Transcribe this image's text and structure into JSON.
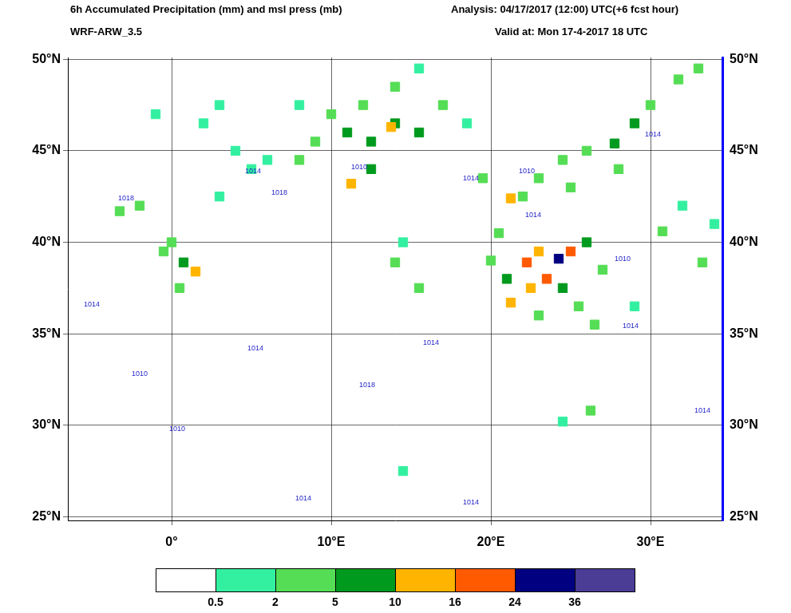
{
  "chart_data": {
    "type": "scatter",
    "title": "6h Accumulated Precipitation (mm) and msl press (mb)",
    "subtitle": "WRF-ARW_3.5",
    "annotations": [
      "Analysis: 04/17/2017 (12:00) UTC(+6 fcst hour)",
      "Valid at: Mon 17-4-2017  18 UTC"
    ],
    "xlim": [
      -6.5,
      34.5
    ],
    "ylim": [
      24.8,
      50.1
    ],
    "xticks": [
      {
        "value": 0,
        "label": "0°"
      },
      {
        "value": 10,
        "label": "10°E"
      },
      {
        "value": 20,
        "label": "20°E"
      },
      {
        "value": 30,
        "label": "30°E"
      }
    ],
    "yticks": [
      {
        "value": 25,
        "label": "25°N"
      },
      {
        "value": 30,
        "label": "30°N"
      },
      {
        "value": 35,
        "label": "35°N"
      },
      {
        "value": 40,
        "label": "40°N"
      },
      {
        "value": 45,
        "label": "45°N"
      },
      {
        "value": 50,
        "label": "50°N"
      }
    ],
    "grid": true,
    "colorbar": {
      "ticks": [
        0.5,
        2,
        5,
        10,
        16,
        24,
        36
      ],
      "colors": [
        "#ffffff",
        "#33f0a0",
        "#55dd55",
        "#009a1e",
        "#ffb400",
        "#ff5a00",
        "#000080",
        "#4b3c96"
      ]
    },
    "precipitation": [
      {
        "lon": 2,
        "lat": 46.5,
        "mm": 1
      },
      {
        "lon": 4,
        "lat": 45,
        "mm": 1.5
      },
      {
        "lon": 6,
        "lat": 44.5,
        "mm": 1
      },
      {
        "lon": 8,
        "lat": 47.5,
        "mm": 1.5
      },
      {
        "lon": 10,
        "lat": 47,
        "mm": 3
      },
      {
        "lon": 12,
        "lat": 47.5,
        "mm": 3
      },
      {
        "lon": 14,
        "lat": 48.5,
        "mm": 2
      },
      {
        "lon": 15.5,
        "lat": 49.5,
        "mm": 1.5
      },
      {
        "lon": 17,
        "lat": 47.5,
        "mm": 3
      },
      {
        "lon": 9,
        "lat": 45.5,
        "mm": 3
      },
      {
        "lon": 11,
        "lat": 46,
        "mm": 7
      },
      {
        "lon": 12.5,
        "lat": 45.5,
        "mm": 8
      },
      {
        "lon": 14,
        "lat": 46.5,
        "mm": 7
      },
      {
        "lon": 15.5,
        "lat": 46,
        "mm": 6
      },
      {
        "lon": 13.75,
        "lat": 46.3,
        "mm": 12
      },
      {
        "lon": 11.25,
        "lat": 43.2,
        "mm": 12
      },
      {
        "lon": 12.5,
        "lat": 44,
        "mm": 6
      },
      {
        "lon": 8,
        "lat": 44.5,
        "mm": 4
      },
      {
        "lon": 5,
        "lat": 44,
        "mm": 1.5
      },
      {
        "lon": 3,
        "lat": 47.5,
        "mm": 1
      },
      {
        "lon": 18.5,
        "lat": 46.5,
        "mm": 1.5
      },
      {
        "lon": -1,
        "lat": 47,
        "mm": 1
      },
      {
        "lon": 19.5,
        "lat": 43.5,
        "mm": 2
      },
      {
        "lon": 21.25,
        "lat": 42.4,
        "mm": 10
      },
      {
        "lon": 22,
        "lat": 42.5,
        "mm": 4
      },
      {
        "lon": 23,
        "lat": 43.5,
        "mm": 2
      },
      {
        "lon": 24.5,
        "lat": 44.5,
        "mm": 3
      },
      {
        "lon": 26,
        "lat": 45,
        "mm": 4
      },
      {
        "lon": 27.75,
        "lat": 45.4,
        "mm": 8
      },
      {
        "lon": 29,
        "lat": 46.5,
        "mm": 5
      },
      {
        "lon": 30,
        "lat": 47.5,
        "mm": 3
      },
      {
        "lon": 31.75,
        "lat": 48.9,
        "mm": 3
      },
      {
        "lon": 33,
        "lat": 49.5,
        "mm": 2
      },
      {
        "lon": 25,
        "lat": 43,
        "mm": 2
      },
      {
        "lon": 28,
        "lat": 44,
        "mm": 2
      },
      {
        "lon": 20,
        "lat": 39,
        "mm": 3
      },
      {
        "lon": 21,
        "lat": 38,
        "mm": 6
      },
      {
        "lon": 20.5,
        "lat": 40.5,
        "mm": 4
      },
      {
        "lon": 27,
        "lat": 38.5,
        "mm": 3
      },
      {
        "lon": 26.5,
        "lat": 35.5,
        "mm": 2
      },
      {
        "lon": 23,
        "lat": 36,
        "mm": 3
      },
      {
        "lon": 25.5,
        "lat": 36.5,
        "mm": 4
      },
      {
        "lon": 24.5,
        "lat": 37.5,
        "mm": 6
      },
      {
        "lon": 26,
        "lat": 40,
        "mm": 8
      },
      {
        "lon": 22.5,
        "lat": 37.5,
        "mm": 10
      },
      {
        "lon": 21.25,
        "lat": 36.7,
        "mm": 14
      },
      {
        "lon": 23,
        "lat": 39.5,
        "mm": 14
      },
      {
        "lon": 23.5,
        "lat": 38,
        "mm": 16
      },
      {
        "lon": 25,
        "lat": 39.5,
        "mm": 18
      },
      {
        "lon": 22.25,
        "lat": 38.9,
        "mm": 20
      },
      {
        "lon": 24.25,
        "lat": 39.1,
        "mm": 30
      },
      {
        "lon": 30.75,
        "lat": 40.6,
        "mm": 3
      },
      {
        "lon": 33.25,
        "lat": 38.9,
        "mm": 2
      },
      {
        "lon": 32,
        "lat": 42,
        "mm": 1.5
      },
      {
        "lon": 34,
        "lat": 41,
        "mm": 1.5
      },
      {
        "lon": 29,
        "lat": 36.5,
        "mm": 1
      },
      {
        "lon": -3.25,
        "lat": 41.7,
        "mm": 3
      },
      {
        "lon": -2,
        "lat": 42,
        "mm": 2
      },
      {
        "lon": 0,
        "lat": 40,
        "mm": 3
      },
      {
        "lon": 0.5,
        "lat": 37.5,
        "mm": 3
      },
      {
        "lon": -0.5,
        "lat": 39.5,
        "mm": 2
      },
      {
        "lon": 3,
        "lat": 42.5,
        "mm": 1.5
      },
      {
        "lon": 0.75,
        "lat": 38.9,
        "mm": 6
      },
      {
        "lon": 1.5,
        "lat": 38.4,
        "mm": 14
      },
      {
        "lon": 14,
        "lat": 38.9,
        "mm": 3
      },
      {
        "lon": 15.5,
        "lat": 37.5,
        "mm": 2
      },
      {
        "lon": 14.5,
        "lat": 40,
        "mm": 1.5
      },
      {
        "lon": 26.25,
        "lat": 30.8,
        "mm": 2
      },
      {
        "lon": 24.5,
        "lat": 30.2,
        "mm": 1
      },
      {
        "lon": 14.5,
        "lat": 27.5,
        "mm": 1
      }
    ],
    "isobar_labels": [
      {
        "lon": 5.1,
        "lat": 43.9,
        "value": 1014
      },
      {
        "lon": 6.75,
        "lat": 42.7,
        "value": 1018
      },
      {
        "lon": 11.75,
        "lat": 44.1,
        "value": 1010
      },
      {
        "lon": 18.75,
        "lat": 43.5,
        "value": 1014
      },
      {
        "lon": 22.25,
        "lat": 43.9,
        "value": 1010
      },
      {
        "lon": 22.65,
        "lat": 41.5,
        "value": 1014
      },
      {
        "lon": 28.25,
        "lat": 39.1,
        "value": 1010
      },
      {
        "lon": 28.75,
        "lat": 35.4,
        "value": 1014
      },
      {
        "lon": 16.25,
        "lat": 34.5,
        "value": 1014
      },
      {
        "lon": 5.25,
        "lat": 34.2,
        "value": 1014
      },
      {
        "lon": -2,
        "lat": 32.8,
        "value": 1010
      },
      {
        "lon": 12.25,
        "lat": 32.2,
        "value": 1018
      },
      {
        "lon": 0.35,
        "lat": 29.8,
        "value": 1010
      },
      {
        "lon": 8.25,
        "lat": 26,
        "value": 1014
      },
      {
        "lon": 18.75,
        "lat": 25.8,
        "value": 1014
      },
      {
        "lon": 33.25,
        "lat": 30.8,
        "value": 1014
      },
      {
        "lon": -2.85,
        "lat": 42.4,
        "value": 1018
      },
      {
        "lon": -5,
        "lat": 36.6,
        "value": 1014
      },
      {
        "lon": 30.15,
        "lat": 45.9,
        "value": 1014
      }
    ]
  }
}
